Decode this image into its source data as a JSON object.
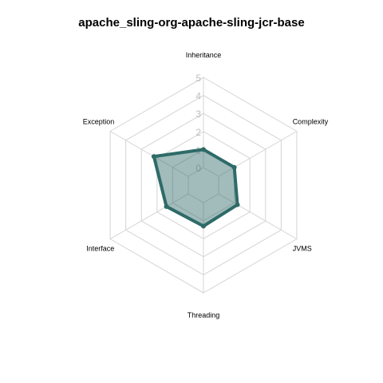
{
  "chart_data": {
    "type": "radar",
    "title": "apache_sling-org-apache-sling-jcr-base",
    "axes": [
      "Inheritance",
      "Complexity",
      "JVMS",
      "Threading",
      "Interface",
      "Exception"
    ],
    "tick_labels": [
      "0",
      "1",
      "2",
      "3",
      "4",
      "5"
    ],
    "rlim": [
      0,
      5
    ],
    "grid": true,
    "series": [
      {
        "values": [
          1.0,
          1.0,
          1.2,
          1.3,
          1.4,
          2.2
        ]
      }
    ],
    "colors": {
      "line": "#2e6b68",
      "fill": "#2e6b68",
      "grid": "#d4d4d4",
      "tick": "#bdbdbd"
    }
  }
}
